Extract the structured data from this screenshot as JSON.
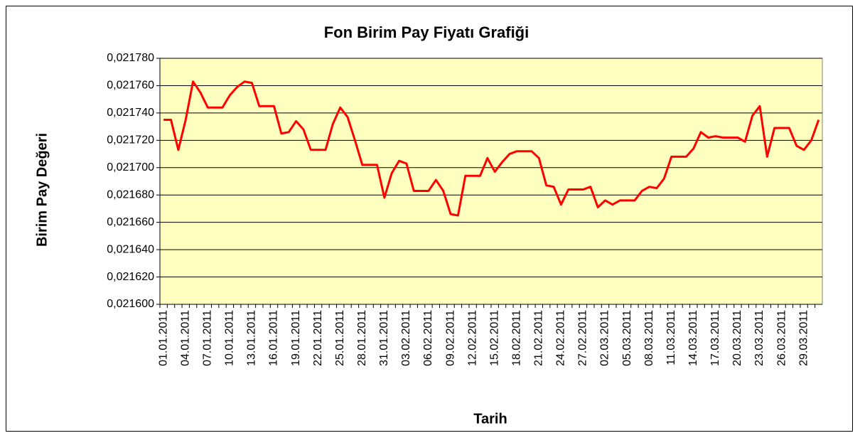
{
  "chart_data": {
    "type": "line",
    "title": "Fon Birim Pay Fiyatı Grafiği",
    "x_label": "Tarih",
    "y_label": "Birim Pay  Değeri",
    "categories": [
      "01.01.2011",
      null,
      null,
      "04.01.2011",
      null,
      null,
      "07.01.2011",
      null,
      null,
      "10.01.2011",
      null,
      null,
      "13.01.2011",
      null,
      null,
      "16.01.2011",
      null,
      null,
      "19.01.2011",
      null,
      null,
      "22.01.2011",
      null,
      null,
      "25.01.2011",
      null,
      null,
      "28.01.2011",
      null,
      null,
      "31.01.2011",
      null,
      null,
      "03.02.2011",
      null,
      null,
      "06.02.2011",
      null,
      null,
      "09.02.2011",
      null,
      null,
      "12.02.2011",
      null,
      null,
      "15.02.2011",
      null,
      null,
      "18.02.2011",
      null,
      null,
      "21.02.2011",
      null,
      null,
      "24.02.2011",
      null,
      null,
      "27.02.2011",
      null,
      null,
      "02.03.2011",
      null,
      null,
      "05.03.2011",
      null,
      null,
      "08.03.2011",
      null,
      null,
      "11.03.2011",
      null,
      null,
      "14.03.2011",
      null,
      null,
      "17.03.2011",
      null,
      null,
      "20.03.2011",
      null,
      null,
      "23.03.2011",
      null,
      null,
      "26.03.2011",
      null,
      null,
      "29.03.2011",
      null,
      null
    ],
    "values": [
      0.021735,
      0.021735,
      0.021713,
      0.021735,
      0.021763,
      0.021755,
      0.021744,
      0.021744,
      0.021744,
      0.021753,
      0.021759,
      0.021763,
      0.021762,
      0.021745,
      0.021745,
      0.021745,
      0.021725,
      0.021726,
      0.021734,
      0.021728,
      0.021713,
      0.021713,
      0.021713,
      0.021732,
      0.021744,
      0.021737,
      0.02172,
      0.021702,
      0.021702,
      0.021702,
      0.021678,
      0.021696,
      0.021705,
      0.021703,
      0.021683,
      0.021683,
      0.021683,
      0.021691,
      0.021683,
      0.021666,
      0.021665,
      0.021694,
      0.021694,
      0.021694,
      0.021707,
      0.021697,
      0.021704,
      0.02171,
      0.021712,
      0.021712,
      0.021712,
      0.021707,
      0.021687,
      0.021686,
      0.021673,
      0.021684,
      0.021684,
      0.021684,
      0.021686,
      0.021671,
      0.021676,
      0.021673,
      0.021676,
      0.021676,
      0.021676,
      0.021683,
      0.021686,
      0.021685,
      0.021692,
      0.021708,
      0.021708,
      0.021708,
      0.021714,
      0.021726,
      0.021722,
      0.021723,
      0.021722,
      0.021722,
      0.021722,
      0.021719,
      0.021738,
      0.021745,
      0.021708,
      0.021729,
      0.021729,
      0.021729,
      0.021716,
      0.021713,
      0.02172,
      0.021735
    ],
    "color": "#ff0000",
    "ylim": [
      0.0216,
      0.02178
    ],
    "yticks": [
      {
        "value": 0.0216,
        "label": "0,021600"
      },
      {
        "value": 0.02162,
        "label": "0,021620"
      },
      {
        "value": 0.02164,
        "label": "0,021640"
      },
      {
        "value": 0.02166,
        "label": "0,021660"
      },
      {
        "value": 0.02168,
        "label": "0,021680"
      },
      {
        "value": 0.0217,
        "label": "0,021700"
      },
      {
        "value": 0.02172,
        "label": "0,021720"
      },
      {
        "value": 0.02174,
        "label": "0,021740"
      },
      {
        "value": 0.02176,
        "label": "0,021760"
      },
      {
        "value": 0.02178,
        "label": "0,021780"
      }
    ],
    "grid": true
  }
}
